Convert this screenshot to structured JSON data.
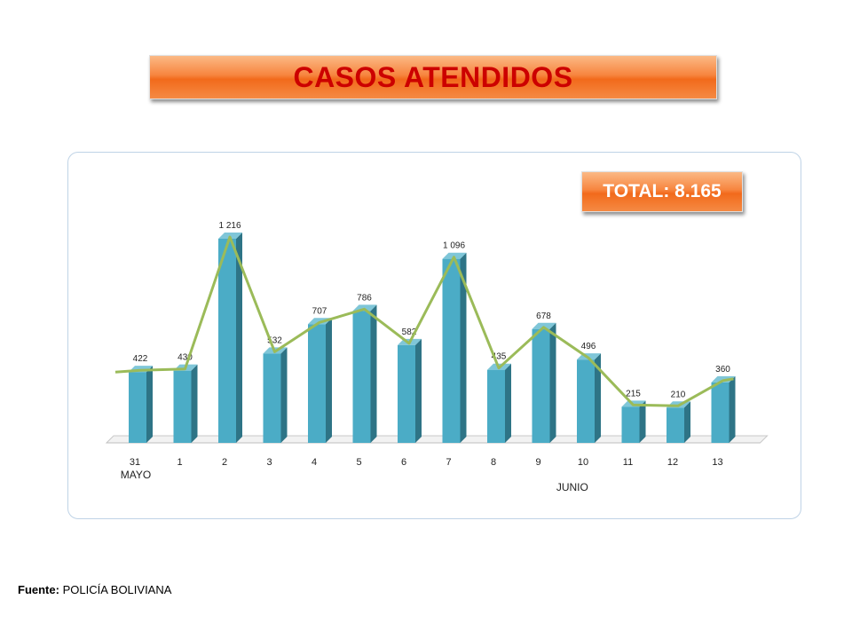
{
  "title": "CASOS ATENDIDOS",
  "total_badge": "TOTAL: 8.165",
  "source_label": "Fuente:",
  "source_value": "POLICÍA BOLIVIANA",
  "colors": {
    "bar_front": "#4bacc6",
    "bar_side": "#2e7486",
    "bar_top": "#7fc6d8",
    "trend_line": "#9bbb59",
    "title_text": "#cc0000"
  },
  "chart_data": {
    "type": "bar",
    "categories": [
      "31",
      "1",
      "2",
      "3",
      "4",
      "5",
      "6",
      "7",
      "8",
      "9",
      "10",
      "11",
      "12",
      "13"
    ],
    "month_labels": [
      "MAYO",
      "JUNIO"
    ],
    "values": [
      422,
      430,
      1216,
      532,
      707,
      786,
      582,
      1096,
      435,
      678,
      496,
      215,
      210,
      360
    ],
    "value_labels": [
      "422",
      "430",
      "1 216",
      "532",
      "707",
      "786",
      "582",
      "1 096",
      "435",
      "678",
      "496",
      "215",
      "210",
      "360"
    ],
    "trend_line": true,
    "ylim": [
      0,
      1216
    ],
    "grid": false
  }
}
